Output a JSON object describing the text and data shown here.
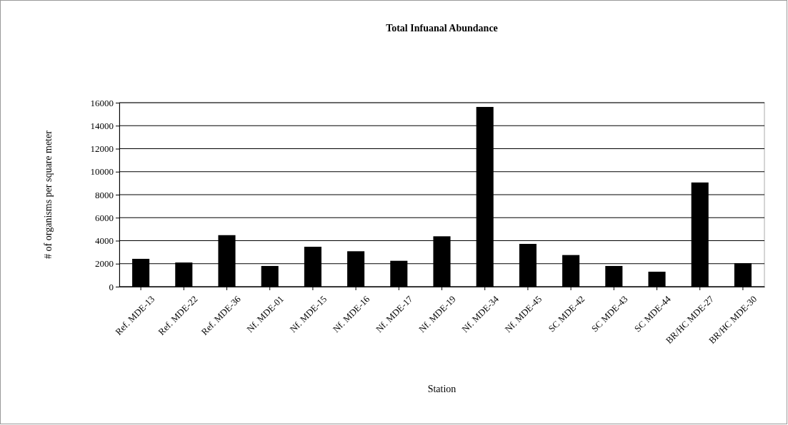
{
  "chart_data": {
    "type": "bar",
    "title": "Total Infuanal Abundance",
    "xlabel": "Station",
    "ylabel": "# of organisms per square meter",
    "categories": [
      "Ref. MDE-13",
      "Ref. MDE-22",
      "Ref. MDE-36",
      "Nf. MDE-01",
      "Nf. MDE-15",
      "Nf. MDE-16",
      "Nf. MDE-17",
      "Nf. MDE-19",
      "Nf. MDE-34",
      "Nf. MDE-45",
      "SC MDE-42",
      "SC MDE-43",
      "SC MDE-44",
      "BR/HC MDE-27",
      "BR/HC MDE-30"
    ],
    "values": [
      2420,
      2100,
      4480,
      1800,
      3470,
      3080,
      2250,
      4380,
      15630,
      3720,
      2750,
      1800,
      1300,
      9060,
      2040
    ],
    "color": "#000000",
    "ylim": [
      0,
      16000
    ],
    "yticks": [
      0,
      2000,
      4000,
      6000,
      8000,
      10000,
      12000,
      14000,
      16000
    ],
    "grid": "y"
  }
}
